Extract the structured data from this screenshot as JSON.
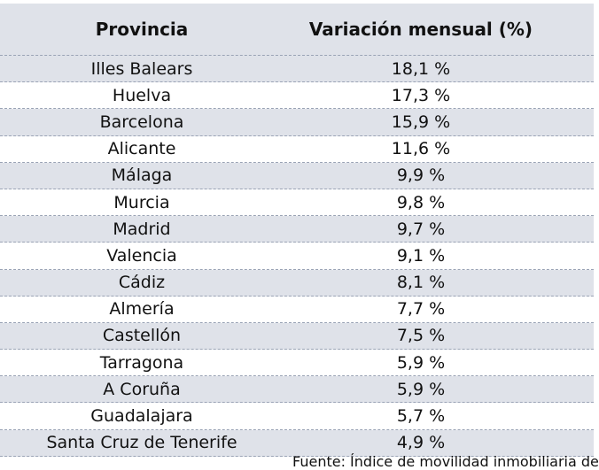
{
  "table": {
    "header": [
      "Provincia",
      "Variación mensual (%)"
    ],
    "rows": [
      [
        "Illes Balears",
        "18,1 %"
      ],
      [
        "Huelva",
        "17,3 %"
      ],
      [
        "Barcelona",
        "15,9 %"
      ],
      [
        "Alicante",
        "11,6 %"
      ],
      [
        "Málaga",
        "9,9 %"
      ],
      [
        "Murcia",
        "9,8 %"
      ],
      [
        "Madrid",
        "9,7 %"
      ],
      [
        "Valencia",
        "9,1 %"
      ],
      [
        "Cádiz",
        "8,1 %"
      ],
      [
        "Almería",
        "7,7 %"
      ],
      [
        "Castellón",
        "7,5 %"
      ],
      [
        "Tarragona",
        "5,9 %"
      ],
      [
        "A Coruña",
        "5,9 %"
      ],
      [
        "Guadalajara",
        "5,7 %"
      ],
      [
        "Santa Cruz de Tenerife",
        "4,9 %"
      ]
    ]
  },
  "footer": "Fuente: Índice de movilidad inmobiliaria de fo"
}
